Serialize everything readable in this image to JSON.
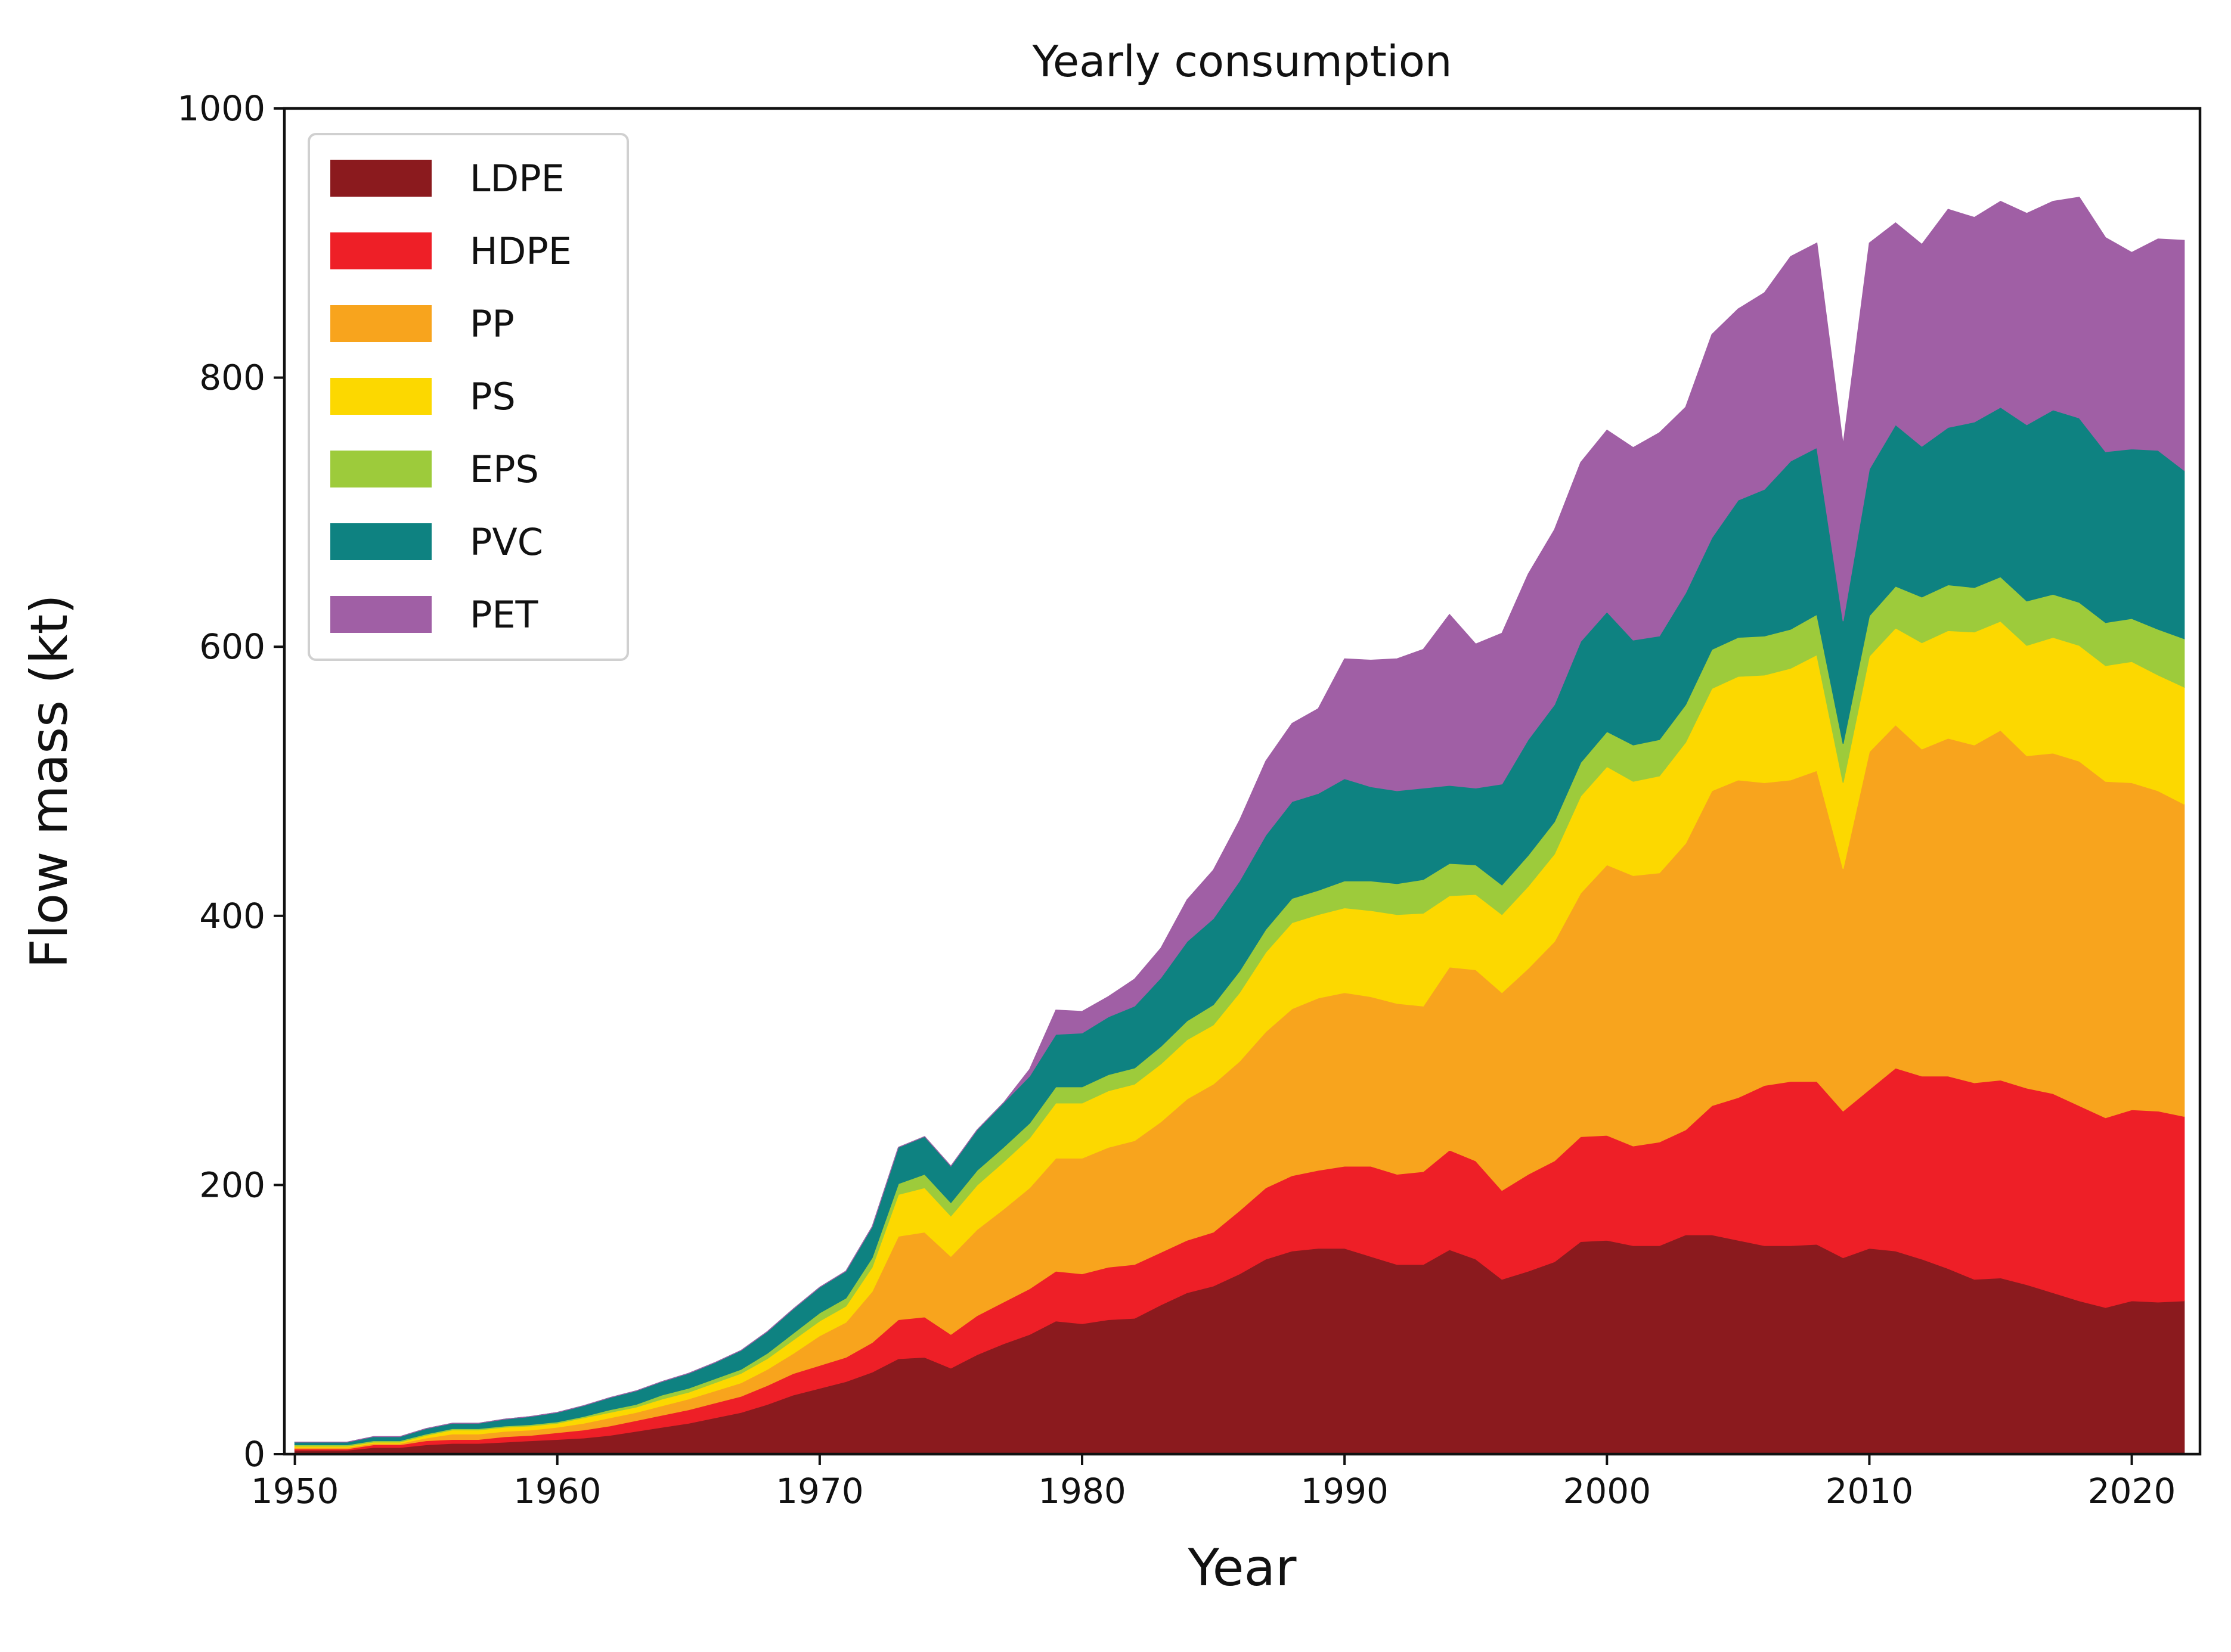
{
  "chart_data": {
    "type": "area",
    "stacked": true,
    "title": "Yearly consumption",
    "xlabel": "Year",
    "ylabel": "Flow mass (kt)",
    "xlim": [
      1950,
      2022
    ],
    "ylim": [
      0,
      1000
    ],
    "xticks": [
      "1950",
      "1960",
      "1970",
      "1980",
      "1990",
      "2000",
      "2010",
      "2020"
    ],
    "yticks": [
      "0",
      "200",
      "400",
      "600",
      "800",
      "1000"
    ],
    "grid": false,
    "legend_position": "top-left",
    "x": [
      1950,
      1951,
      1952,
      1953,
      1954,
      1955,
      1956,
      1957,
      1958,
      1959,
      1960,
      1961,
      1962,
      1963,
      1964,
      1965,
      1966,
      1967,
      1968,
      1969,
      1970,
      1971,
      1972,
      1973,
      1974,
      1975,
      1976,
      1977,
      1978,
      1979,
      1980,
      1981,
      1982,
      1983,
      1984,
      1985,
      1986,
      1987,
      1988,
      1989,
      1990,
      1991,
      1992,
      1993,
      1994,
      1995,
      1996,
      1997,
      1998,
      1999,
      2000,
      2001,
      2002,
      2003,
      2004,
      2005,
      2006,
      2007,
      2008,
      2009,
      2010,
      2011,
      2012,
      2013,
      2014,
      2015,
      2016,
      2017,
      2018,
      2019,
      2020,
      2021,
      2022
    ],
    "series": [
      {
        "name": "LDPE",
        "color": "#8b1a1e",
        "values": [
          3,
          3,
          3,
          5,
          5,
          7,
          8,
          8,
          9,
          10,
          11,
          12,
          14,
          17,
          20,
          23,
          27,
          31,
          37,
          44,
          49,
          54,
          61,
          71,
          72,
          64,
          74,
          82,
          89,
          99,
          97,
          100,
          101,
          111,
          120,
          125,
          134,
          145,
          151,
          153,
          153,
          147,
          141,
          141,
          152,
          145,
          130,
          136,
          143,
          158,
          159,
          155,
          155,
          163,
          163,
          159,
          155,
          155,
          156,
          146,
          153,
          151,
          145,
          138,
          130,
          131,
          126,
          120,
          114,
          109,
          114,
          113,
          114
        ]
      },
      {
        "name": "HDPE",
        "color": "#ee1f27",
        "values": [
          1,
          1,
          1,
          2,
          2,
          3,
          3,
          3,
          4,
          4,
          5,
          6,
          7,
          8,
          9,
          10,
          11,
          12,
          14,
          16,
          17,
          18,
          22,
          29,
          30,
          25,
          29,
          31,
          34,
          37,
          37,
          39,
          40,
          39,
          39,
          40,
          47,
          53,
          56,
          58,
          61,
          67,
          67,
          69,
          74,
          73,
          66,
          72,
          75,
          78,
          78,
          74,
          77,
          78,
          96,
          106,
          119,
          122,
          121,
          109,
          118,
          136,
          136,
          143,
          146,
          147,
          146,
          148,
          145,
          141,
          142,
          142,
          137
        ]
      },
      {
        "name": "PP",
        "color": "#f8a41d",
        "values": [
          1,
          1,
          1,
          1,
          1,
          2,
          4,
          4,
          4,
          4,
          4,
          5,
          6,
          6,
          7,
          8,
          9,
          10,
          12,
          15,
          22,
          26,
          38,
          62,
          63,
          58,
          64,
          69,
          75,
          84,
          86,
          89,
          92,
          97,
          105,
          110,
          111,
          116,
          124,
          128,
          129,
          126,
          127,
          123,
          136,
          142,
          147,
          153,
          163,
          181,
          201,
          201,
          200,
          213,
          234,
          236,
          225,
          224,
          231,
          180,
          251,
          255,
          243,
          251,
          251,
          260,
          247,
          253,
          256,
          250,
          243,
          238,
          232
        ]
      },
      {
        "name": "PS",
        "color": "#fcd800",
        "values": [
          1,
          1,
          1,
          1,
          1,
          2,
          3,
          3,
          3,
          3,
          3,
          4,
          4,
          4,
          5,
          5,
          6,
          7,
          8,
          10,
          11,
          12,
          18,
          31,
          33,
          30,
          33,
          35,
          37,
          41,
          41,
          42,
          42,
          43,
          44,
          44,
          51,
          59,
          64,
          62,
          63,
          64,
          66,
          69,
          53,
          56,
          58,
          61,
          65,
          72,
          73,
          70,
          72,
          75,
          76,
          77,
          80,
          83,
          86,
          64,
          71,
          72,
          79,
          80,
          84,
          81,
          82,
          86,
          86,
          86,
          90,
          86,
          87
        ]
      },
      {
        "name": "EPS",
        "color": "#9dcb3b",
        "values": [
          1,
          1,
          1,
          1,
          1,
          1,
          1,
          1,
          1,
          1,
          1,
          1,
          2,
          2,
          3,
          3,
          3,
          3,
          4,
          5,
          6,
          6,
          7,
          8,
          10,
          10,
          11,
          11,
          11,
          12,
          12,
          12,
          12,
          13,
          14,
          15,
          16,
          17,
          18,
          18,
          20,
          22,
          23,
          25,
          24,
          22,
          22,
          23,
          24,
          25,
          26,
          27,
          27,
          28,
          29,
          29,
          29,
          29,
          30,
          29,
          30,
          31,
          34,
          34,
          33,
          33,
          33,
          32,
          32,
          32,
          32,
          34,
          36
        ]
      },
      {
        "name": "PVC",
        "color": "#0e8281",
        "values": [
          2,
          2,
          2,
          3,
          3,
          4,
          4,
          4,
          5,
          6,
          7,
          8,
          9,
          10,
          10,
          11,
          12,
          14,
          16,
          18,
          19,
          20,
          23,
          27,
          28,
          27,
          30,
          33,
          35,
          39,
          40,
          43,
          46,
          51,
          59,
          64,
          67,
          70,
          72,
          72,
          76,
          70,
          69,
          68,
          58,
          57,
          75,
          86,
          87,
          90,
          89,
          78,
          77,
          83,
          83,
          102,
          109,
          125,
          124,
          91,
          109,
          120,
          112,
          117,
          123,
          126,
          131,
          137,
          137,
          127,
          126,
          133,
          125
        ]
      },
      {
        "name": "PET",
        "color": "#a05fa5",
        "values": [
          0,
          0,
          0,
          0,
          0,
          0,
          0,
          0,
          0,
          0,
          0,
          0,
          0,
          0,
          0,
          0,
          0,
          0,
          0,
          0,
          0,
          0,
          0,
          0,
          0,
          0,
          0,
          0,
          5,
          18,
          16,
          15,
          20,
          22,
          31,
          36,
          45,
          55,
          58,
          63,
          89,
          94,
          98,
          103,
          127,
          107,
          112,
          123,
          130,
          133,
          135,
          143,
          151,
          138,
          151,
          142,
          146,
          152,
          152,
          131,
          168,
          150,
          150,
          162,
          152,
          153,
          157,
          155,
          164,
          159,
          146,
          157,
          171
        ]
      }
    ]
  }
}
